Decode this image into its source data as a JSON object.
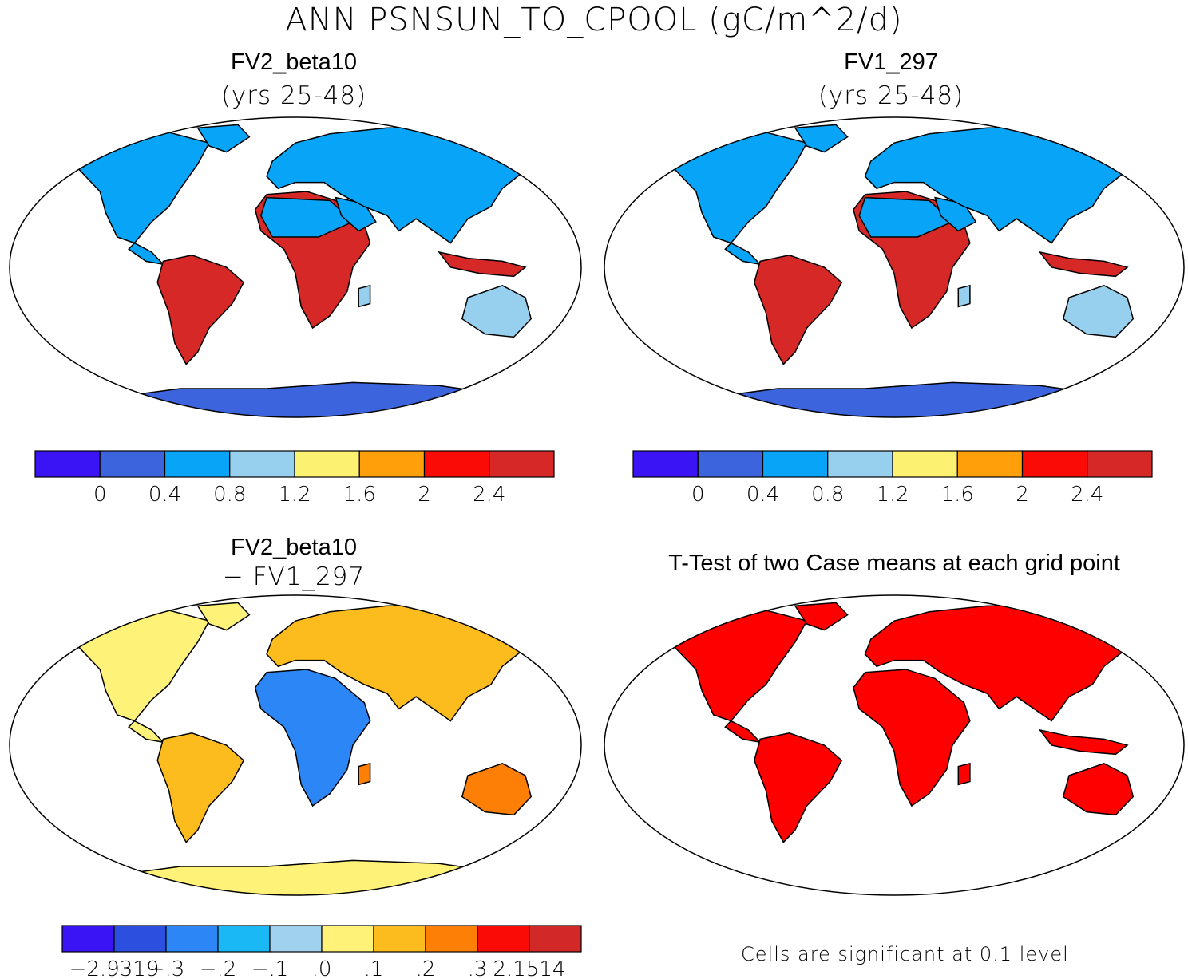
{
  "main_title": "ANN PSNSUN_TO_CPOOL (gC/m^2/d)",
  "panels": [
    {
      "title": "FV2_beta10",
      "subtitle": "(yrs 25-48)"
    },
    {
      "title": "FV1_297",
      "subtitle": "(yrs 25-48)"
    },
    {
      "title": "FV2_beta10",
      "subtitle": "− FV1_297"
    },
    {
      "title": "T-Test of two Case means at each grid point",
      "subtitle": ""
    }
  ],
  "footnote": "Cells are significant at 0.1 level",
  "chart_data": [
    {
      "type": "heatmap",
      "title": "FV2_beta10 (yrs 25-48)",
      "colorbar": {
        "colors": [
          "#3b14f5",
          "#3c64dc",
          "#08a4f8",
          "#96d0ee",
          "#fdf172",
          "#ffa00a",
          "#fb0b05",
          "#d72828"
        ],
        "ticks": [
          "0",
          "0.4",
          "0.8",
          "1.2",
          "1.6",
          "2",
          "2.4"
        ]
      },
      "regions": [
        {
          "name": "North America",
          "value": 0.4
        },
        {
          "name": "South America (Amazon)",
          "value": 2.4
        },
        {
          "name": "Central Africa",
          "value": 2.4
        },
        {
          "name": "Sahara and Arabia",
          "value": 0.4
        },
        {
          "name": "Eurasia",
          "value": 0.6
        },
        {
          "name": "Southeast Asia",
          "value": 2.4
        },
        {
          "name": "Australia",
          "value": 0.8
        },
        {
          "name": "Antarctica",
          "value": 0.2
        }
      ]
    },
    {
      "type": "heatmap",
      "title": "FV1_297 (yrs 25-48)",
      "colorbar": {
        "colors": [
          "#3b14f5",
          "#3c64dc",
          "#08a4f8",
          "#96d0ee",
          "#fdf172",
          "#ffa00a",
          "#fb0b05",
          "#d72828"
        ],
        "ticks": [
          "0",
          "0.4",
          "0.8",
          "1.2",
          "1.6",
          "2",
          "2.4"
        ]
      },
      "regions": [
        {
          "name": "North America",
          "value": 0.4
        },
        {
          "name": "South America (Amazon)",
          "value": 2.4
        },
        {
          "name": "Central Africa",
          "value": 2.4
        },
        {
          "name": "Sahara and Arabia",
          "value": 0.4
        },
        {
          "name": "Eurasia",
          "value": 0.6
        },
        {
          "name": "Southeast Asia",
          "value": 2.4
        },
        {
          "name": "Australia",
          "value": 0.8
        },
        {
          "name": "Antarctica",
          "value": 0.2
        }
      ]
    },
    {
      "type": "heatmap",
      "title": "FV2_beta10 − FV1_297",
      "colorbar": {
        "colors": [
          "#3b14f5",
          "#2d4fe0",
          "#2c86f5",
          "#1ab8f5",
          "#a0d2f0",
          "#fef278",
          "#fdbc1e",
          "#fd7f05",
          "#fb0b05",
          "#d32828"
        ],
        "ticks": [
          "−2.9319",
          "−.3",
          "−.2",
          "−.1",
          ".0",
          ".1",
          ".2",
          ".3",
          "2.1514"
        ]
      },
      "regions": [
        {
          "name": "North America",
          "value": 0.05
        },
        {
          "name": "South America",
          "value": 0.1
        },
        {
          "name": "Sahel",
          "value": -0.3
        },
        {
          "name": "Eurasia",
          "value": 0.1
        },
        {
          "name": "Australia",
          "value": 0.2
        },
        {
          "name": "Antarctica",
          "value": 0.05
        }
      ]
    },
    {
      "type": "heatmap",
      "title": "T-Test of two Case means at each grid point",
      "colorbar": {
        "colors": [
          "#ff0000"
        ],
        "ticks": []
      },
      "regions": [
        {
          "name": "Land (significant cells)",
          "value": 1
        }
      ]
    }
  ]
}
